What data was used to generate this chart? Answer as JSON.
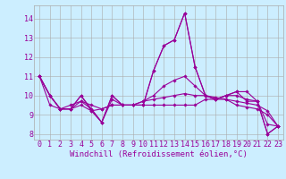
{
  "x": [
    0,
    1,
    2,
    3,
    4,
    5,
    6,
    7,
    8,
    9,
    10,
    11,
    12,
    13,
    14,
    15,
    16,
    17,
    18,
    19,
    20,
    21,
    22,
    23
  ],
  "series": [
    [
      11.0,
      10.0,
      9.3,
      9.3,
      10.0,
      9.2,
      8.6,
      10.0,
      9.5,
      9.5,
      9.5,
      11.3,
      12.6,
      12.9,
      14.3,
      11.5,
      10.0,
      9.8,
      10.0,
      10.2,
      10.2,
      9.7,
      8.0,
      8.4
    ],
    [
      11.0,
      10.0,
      9.3,
      9.5,
      9.7,
      9.5,
      9.3,
      9.5,
      9.5,
      9.5,
      9.7,
      9.8,
      9.9,
      10.0,
      10.1,
      10.0,
      10.0,
      9.9,
      9.8,
      9.7,
      9.6,
      9.5,
      9.2,
      8.4
    ],
    [
      11.0,
      10.0,
      9.3,
      9.3,
      10.0,
      9.3,
      8.6,
      10.0,
      9.5,
      9.5,
      9.5,
      11.3,
      12.6,
      12.9,
      14.3,
      11.5,
      10.0,
      9.8,
      10.0,
      10.2,
      9.7,
      9.7,
      8.0,
      8.4
    ],
    [
      11.0,
      9.5,
      9.3,
      9.3,
      9.5,
      9.2,
      9.3,
      9.5,
      9.5,
      9.5,
      9.5,
      9.5,
      9.5,
      9.5,
      9.5,
      9.5,
      9.8,
      9.8,
      9.8,
      9.5,
      9.4,
      9.3,
      9.0,
      8.4
    ],
    [
      11.0,
      10.0,
      9.3,
      9.3,
      9.7,
      9.3,
      8.6,
      9.8,
      9.5,
      9.5,
      9.7,
      10.0,
      10.5,
      10.8,
      11.0,
      10.5,
      10.0,
      9.8,
      10.0,
      10.0,
      9.8,
      9.7,
      8.5,
      8.4
    ]
  ],
  "line_color": "#990099",
  "marker": "D",
  "markersize": 1.8,
  "linewidth": 0.8,
  "xlabel": "Windchill (Refroidissement éolien,°C)",
  "xlabel_fontsize": 6.5,
  "xlabel_color": "#990099",
  "ylabel_ticks": [
    8,
    9,
    10,
    11,
    12,
    13,
    14
  ],
  "xtick_labels": [
    "0",
    "1",
    "2",
    "3",
    "4",
    "5",
    "6",
    "7",
    "8",
    "9",
    "10",
    "11",
    "12",
    "13",
    "14",
    "15",
    "16",
    "17",
    "18",
    "19",
    "20",
    "21",
    "22",
    "23"
  ],
  "ylim": [
    7.7,
    14.7
  ],
  "xlim": [
    -0.5,
    23.5
  ],
  "bg_color": "#cceeff",
  "grid_color": "#aaaaaa",
  "tick_color": "#990099",
  "tick_fontsize": 6
}
